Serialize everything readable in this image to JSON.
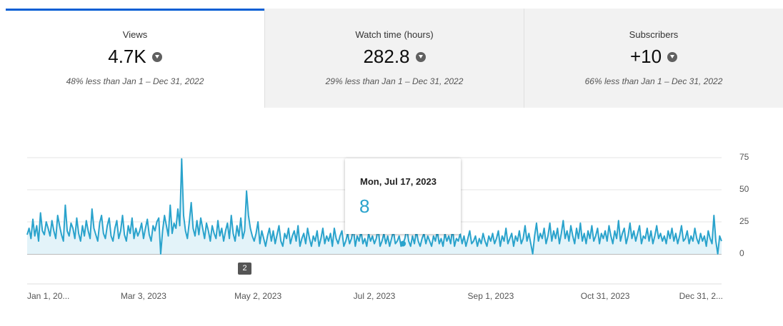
{
  "tabs": [
    {
      "title": "Views",
      "value": "4.7K",
      "comparison": "48% less than Jan 1 – Dec 31, 2022"
    },
    {
      "title": "Watch time (hours)",
      "value": "282.8",
      "comparison": "29% less than Jan 1 – Dec 31, 2022"
    },
    {
      "title": "Subscribers",
      "value": "+10",
      "comparison": "66% less than Jan 1 – Dec 31, 2022"
    }
  ],
  "chart_data": {
    "type": "line",
    "color": "#2aa3cc",
    "grid": true,
    "ylim": [
      0,
      75
    ],
    "yticks": [
      0,
      25,
      50,
      75
    ],
    "categories": [
      "Jan 1, 20...",
      null,
      null,
      null,
      null,
      null,
      null,
      null,
      null,
      null,
      null,
      null,
      null,
      null,
      null,
      null,
      null,
      null,
      null,
      null,
      null,
      null,
      null,
      null,
      null,
      null,
      null,
      null,
      null,
      null,
      null,
      null,
      null,
      null,
      null,
      null,
      null,
      null,
      null,
      null,
      null,
      null,
      null,
      null,
      null,
      null,
      null,
      null,
      null,
      null,
      null,
      null,
      null,
      null,
      null,
      null,
      null,
      null,
      null,
      null,
      null,
      "Mar 3, 2023",
      null,
      null,
      null,
      null,
      null,
      null,
      null,
      null,
      null,
      null,
      null,
      null,
      null,
      null,
      null,
      null,
      null,
      null,
      null,
      null,
      null,
      null,
      null,
      null,
      null,
      null,
      null,
      null,
      null,
      null,
      null,
      null,
      null,
      null,
      null,
      null,
      null,
      null,
      null,
      null,
      null,
      null,
      null,
      null,
      null,
      null,
      null,
      null,
      null,
      null,
      null,
      null,
      null,
      null,
      null,
      null,
      null,
      null,
      null,
      "May 2, 2023",
      null,
      null,
      null,
      null,
      null,
      null,
      null,
      null,
      null,
      null,
      null,
      null,
      null,
      null,
      null,
      null,
      null,
      null,
      null,
      null,
      null,
      null,
      null,
      null,
      null,
      null,
      null,
      null,
      null,
      null,
      null,
      null,
      null,
      null,
      null,
      null,
      null,
      null,
      null,
      null,
      null,
      null,
      null,
      null,
      null,
      null,
      null,
      null,
      null,
      null,
      null,
      null,
      null,
      null,
      null,
      null,
      null,
      null,
      null,
      null,
      "Jul 2, 2023",
      null,
      null,
      null,
      null,
      null,
      null,
      null,
      null,
      null,
      null,
      null,
      null,
      null,
      null,
      null,
      null,
      null,
      null,
      null,
      null,
      null,
      null,
      null,
      null,
      null,
      null,
      null,
      null,
      null,
      null,
      null,
      null,
      null,
      null,
      null,
      null,
      null,
      null,
      null,
      null,
      null,
      null,
      null,
      null,
      null,
      null,
      null,
      null,
      null,
      null,
      null,
      null,
      null,
      null,
      null,
      null,
      null,
      null,
      null,
      null,
      "Sep 1, 2023",
      null,
      null,
      null,
      null,
      null,
      null,
      null,
      null,
      null,
      null,
      null,
      null,
      null,
      null,
      null,
      null,
      null,
      null,
      null,
      null,
      null,
      null,
      null,
      null,
      null,
      null,
      null,
      null,
      null,
      null,
      null,
      null,
      null,
      null,
      null,
      null,
      null,
      null,
      null,
      null,
      null,
      null,
      null,
      null,
      null,
      null,
      null,
      null,
      null,
      null,
      null,
      null,
      null,
      null,
      null,
      null,
      null,
      null,
      null,
      "Oct 31, 2023",
      null,
      null,
      null,
      null,
      null,
      null,
      null,
      null,
      null,
      null,
      null,
      null,
      null,
      null,
      null,
      null,
      null,
      null,
      null,
      null,
      null,
      null,
      null,
      null,
      null,
      null,
      null,
      null,
      null,
      null,
      null,
      null,
      null,
      null,
      null,
      null,
      null,
      null,
      null,
      null,
      null,
      null,
      null,
      null,
      null,
      null,
      null,
      null,
      null,
      null,
      null,
      null,
      null,
      null,
      null,
      null,
      null,
      null,
      null,
      null,
      "Dec 31, 2..."
    ],
    "values": [
      15,
      20,
      12,
      27,
      14,
      22,
      10,
      32,
      18,
      15,
      25,
      20,
      14,
      26,
      18,
      12,
      30,
      22,
      15,
      10,
      38,
      18,
      14,
      24,
      20,
      12,
      28,
      16,
      10,
      22,
      14,
      26,
      18,
      12,
      35,
      20,
      15,
      10,
      24,
      30,
      16,
      12,
      22,
      28,
      14,
      10,
      20,
      26,
      12,
      18,
      30,
      15,
      10,
      22,
      16,
      28,
      12,
      20,
      14,
      18,
      24,
      12,
      20,
      27,
      15,
      10,
      22,
      18,
      25,
      28,
      0,
      18,
      30,
      22,
      14,
      38,
      16,
      24,
      20,
      35,
      22,
      74,
      30,
      18,
      12,
      25,
      40,
      20,
      14,
      26,
      15,
      28,
      20,
      12,
      24,
      18,
      10,
      22,
      16,
      12,
      26,
      14,
      20,
      10,
      18,
      24,
      12,
      30,
      16,
      10,
      22,
      14,
      28,
      12,
      18,
      49,
      30,
      20,
      14,
      10,
      16,
      25,
      8,
      18,
      12,
      6,
      14,
      20,
      10,
      18,
      8,
      15,
      22,
      10,
      6,
      16,
      12,
      20,
      8,
      14,
      18,
      10,
      22,
      6,
      12,
      16,
      8,
      20,
      12,
      6,
      14,
      10,
      18,
      6,
      12,
      20,
      8,
      14,
      10,
      16,
      6,
      20,
      12,
      8,
      14,
      18,
      6,
      10,
      16,
      8,
      12,
      20,
      6,
      14,
      10,
      18,
      8,
      12,
      6,
      16,
      10,
      14,
      8,
      12,
      20,
      6,
      10,
      16,
      8,
      14,
      6,
      12,
      18,
      8,
      10,
      14,
      6,
      8,
      12,
      20,
      10,
      6,
      14,
      8,
      18,
      10,
      6,
      12,
      16,
      8,
      14,
      10,
      6,
      14,
      10,
      18,
      8,
      12,
      6,
      16,
      10,
      14,
      8,
      20,
      6,
      12,
      10,
      16,
      8,
      14,
      6,
      12,
      18,
      8,
      10,
      14,
      6,
      12,
      8,
      16,
      10,
      6,
      14,
      10,
      16,
      8,
      12,
      18,
      6,
      14,
      10,
      20,
      8,
      12,
      16,
      6,
      14,
      10,
      18,
      8,
      12,
      22,
      10,
      16,
      8,
      0,
      14,
      24,
      10,
      16,
      12,
      20,
      8,
      14,
      24,
      10,
      18,
      12,
      20,
      8,
      16,
      26,
      12,
      18,
      10,
      22,
      14,
      8,
      20,
      12,
      24,
      10,
      16,
      8,
      18,
      12,
      22,
      10,
      14,
      20,
      8,
      16,
      12,
      18,
      10,
      22,
      14,
      8,
      18,
      12,
      26,
      10,
      16,
      20,
      8,
      14,
      24,
      12,
      18,
      10,
      16,
      22,
      8,
      14,
      12,
      20,
      10,
      18,
      8,
      14,
      22,
      12,
      16,
      10,
      14,
      8,
      18,
      12,
      20,
      10,
      16,
      8,
      14,
      22,
      10,
      12,
      18,
      8,
      14,
      10,
      20,
      12,
      8,
      16,
      10,
      14,
      6,
      18,
      12,
      8,
      30,
      10,
      0,
      14,
      10
    ],
    "tooltip": {
      "date": "Mon, Jul 17, 2023",
      "value": "8"
    },
    "annotation": "2"
  }
}
